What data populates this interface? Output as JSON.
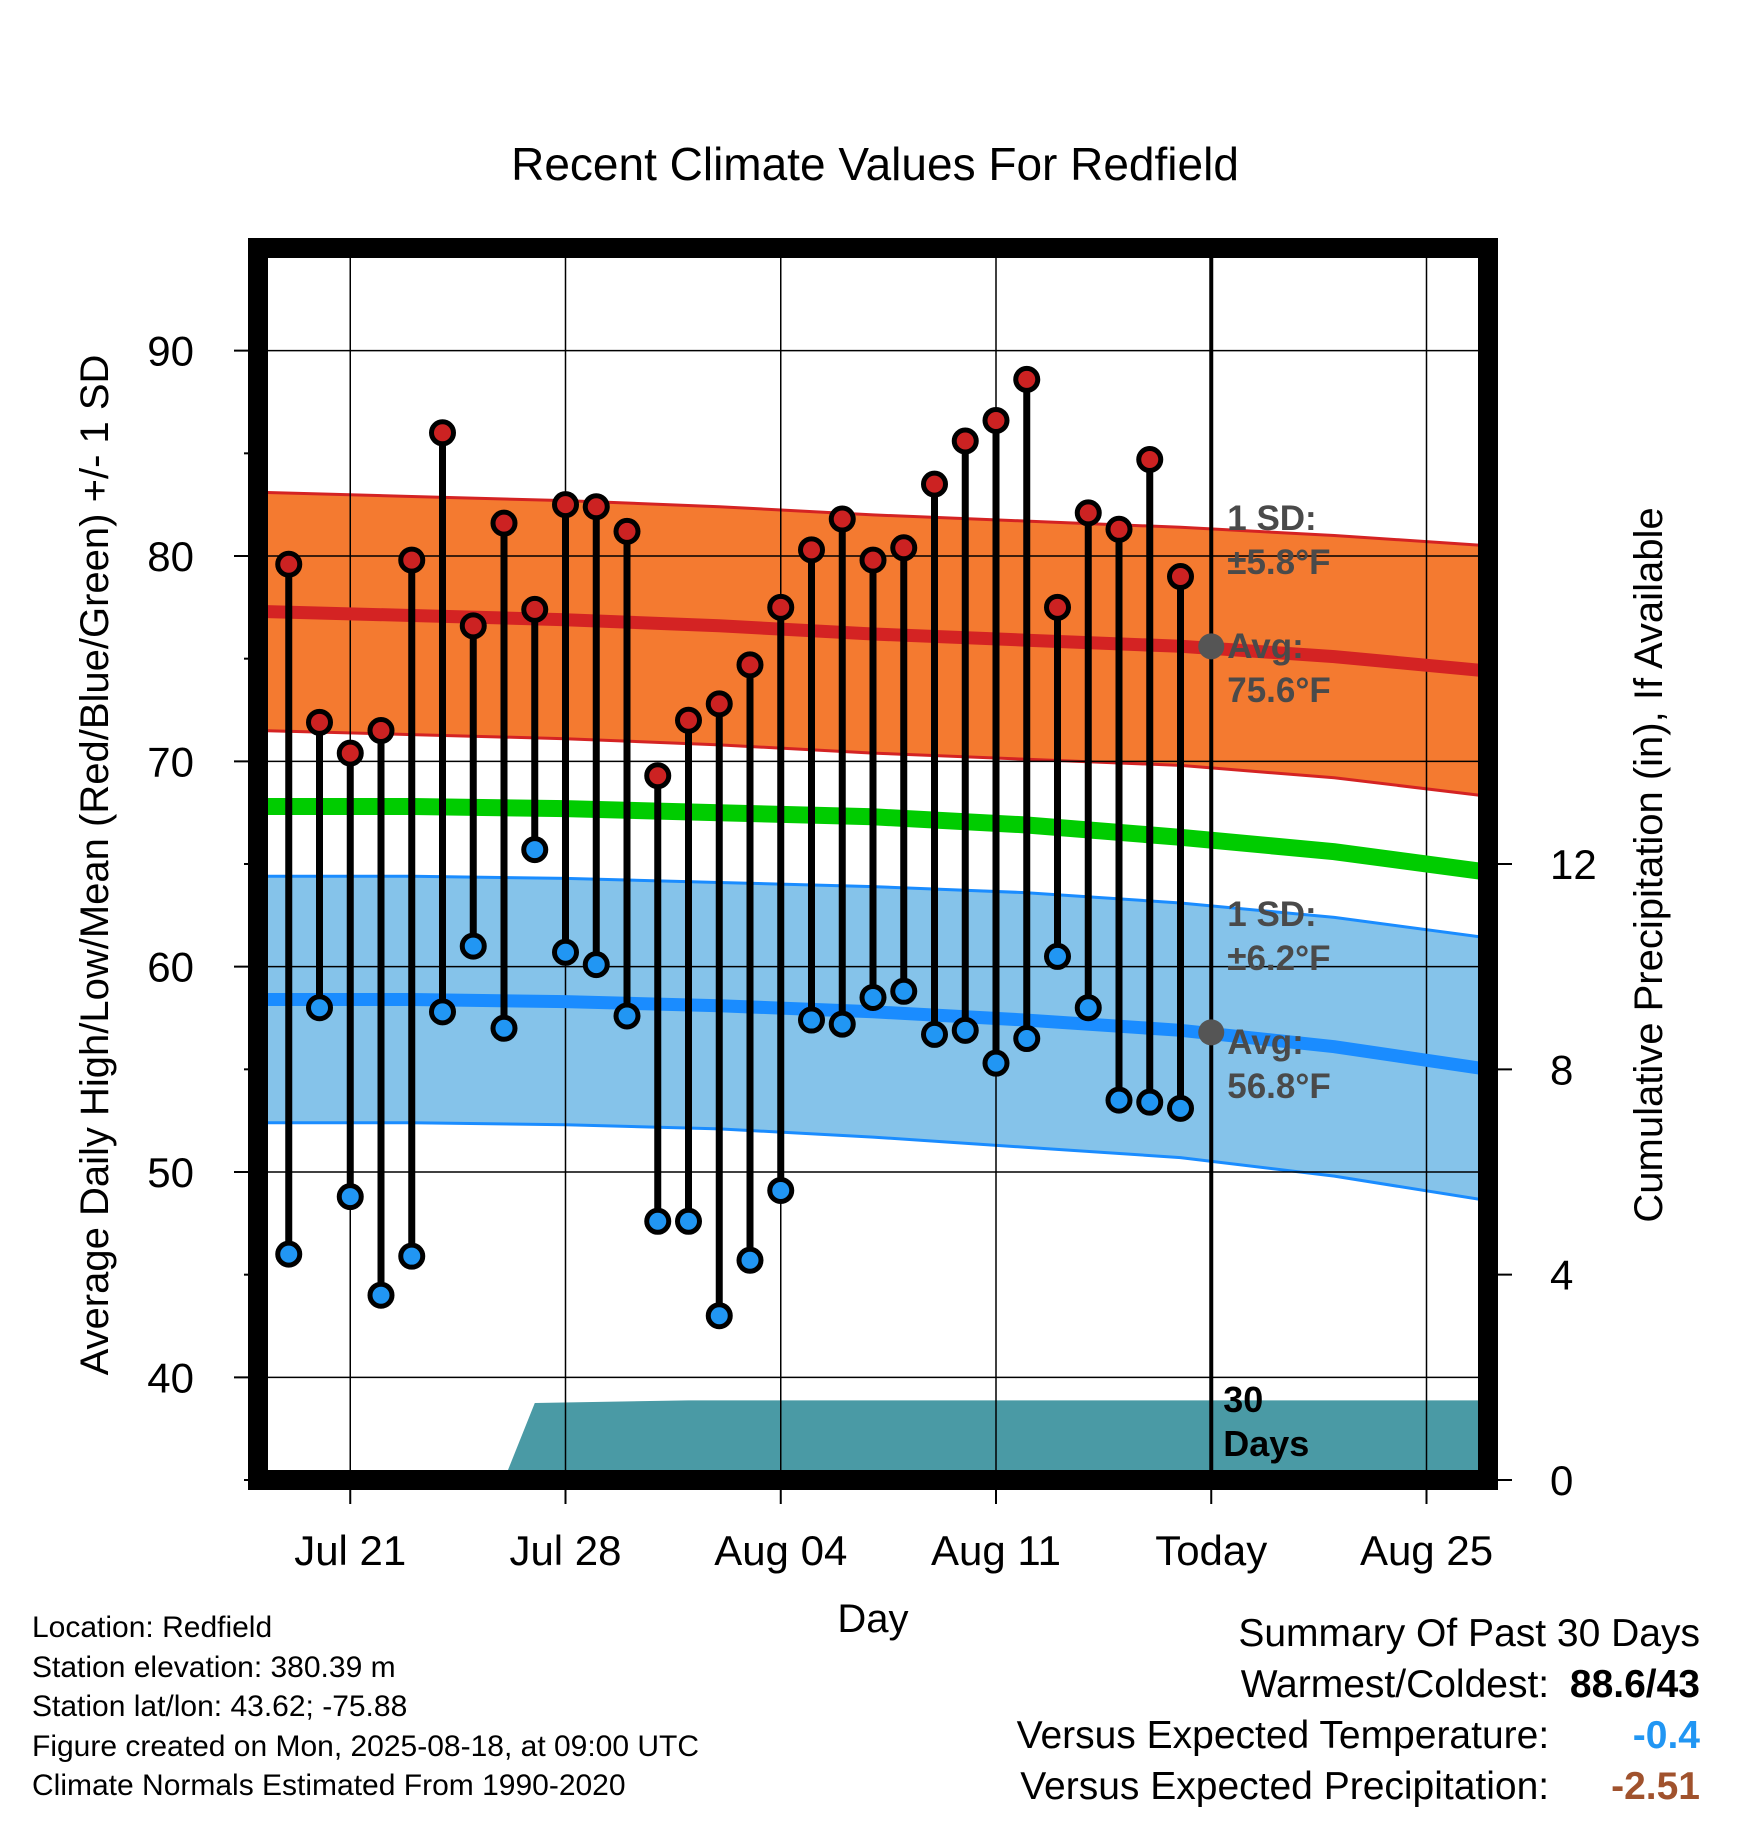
{
  "colors": {
    "high_band": "#f47a30",
    "high_mean": "#d42323",
    "low_band": "#85c3ea",
    "low_mean": "#1a8cff",
    "mean_line": "#00cc00",
    "precip": "#4a9aa5",
    "high_dot": "#cc2222",
    "low_dot": "#2196f3"
  },
  "chart_data": {
    "type": "line",
    "title": "Recent Climate Values For Redfield",
    "xlabel": "Day",
    "ylabel": "Average Daily High/Low/Mean (Red/Blue/Green) +/- 1 SD",
    "y2label": "Cumulative Precipitation (in), If Available",
    "ylim": [
      35,
      95
    ],
    "y2lim": [
      0,
      24
    ],
    "yticks": [
      40,
      50,
      60,
      70,
      80,
      90
    ],
    "y2ticks": [
      0,
      4,
      8,
      12
    ],
    "xlim": [
      "2025-07-18",
      "2025-08-27"
    ],
    "xticks": [
      {
        "date": "2025-07-21",
        "label": "Jul 21"
      },
      {
        "date": "2025-07-28",
        "label": "Jul 28"
      },
      {
        "date": "2025-08-04",
        "label": "Aug 04"
      },
      {
        "date": "2025-08-11",
        "label": "Aug 11"
      },
      {
        "date": "2025-08-18",
        "label": "Today"
      },
      {
        "date": "2025-08-25",
        "label": "Aug 25"
      }
    ],
    "today": "2025-08-18",
    "normals": {
      "dates": [
        "2025-07-18",
        "2025-07-23",
        "2025-07-28",
        "2025-08-02",
        "2025-08-07",
        "2025-08-12",
        "2025-08-17",
        "2025-08-22",
        "2025-08-27"
      ],
      "high_mean": [
        77.3,
        77.1,
        76.9,
        76.6,
        76.2,
        75.9,
        75.6,
        75.1,
        74.4
      ],
      "high_sd": [
        5.8,
        5.8,
        5.8,
        5.8,
        5.8,
        5.8,
        5.8,
        5.9,
        6.1
      ],
      "mean": [
        67.8,
        67.8,
        67.7,
        67.5,
        67.3,
        66.9,
        66.3,
        65.6,
        64.6
      ],
      "low_mean": [
        58.4,
        58.4,
        58.3,
        58.1,
        57.8,
        57.4,
        56.9,
        56.1,
        55.0
      ],
      "low_sd": [
        6.0,
        6.0,
        6.0,
        6.0,
        6.1,
        6.2,
        6.2,
        6.3,
        6.4
      ]
    },
    "series": [
      {
        "name": "High",
        "x": [
          "2025-07-19",
          "2025-07-20",
          "2025-07-21",
          "2025-07-22",
          "2025-07-23",
          "2025-07-24",
          "2025-07-25",
          "2025-07-26",
          "2025-07-27",
          "2025-07-28",
          "2025-07-29",
          "2025-07-30",
          "2025-07-31",
          "2025-08-01",
          "2025-08-02",
          "2025-08-03",
          "2025-08-04",
          "2025-08-05",
          "2025-08-06",
          "2025-08-07",
          "2025-08-08",
          "2025-08-09",
          "2025-08-10",
          "2025-08-11",
          "2025-08-12",
          "2025-08-13",
          "2025-08-14",
          "2025-08-15",
          "2025-08-16",
          "2025-08-17"
        ],
        "values": [
          79.6,
          71.9,
          70.4,
          71.5,
          79.8,
          86.0,
          76.6,
          81.6,
          77.4,
          82.5,
          82.4,
          81.2,
          69.3,
          72.0,
          72.8,
          74.7,
          77.5,
          80.3,
          81.8,
          79.8,
          80.4,
          83.5,
          85.6,
          86.6,
          88.6,
          77.5,
          82.1,
          81.3,
          84.7,
          79.0
        ]
      },
      {
        "name": "Low",
        "x": [
          "2025-07-19",
          "2025-07-20",
          "2025-07-21",
          "2025-07-22",
          "2025-07-23",
          "2025-07-24",
          "2025-07-25",
          "2025-07-26",
          "2025-07-27",
          "2025-07-28",
          "2025-07-29",
          "2025-07-30",
          "2025-07-31",
          "2025-08-01",
          "2025-08-02",
          "2025-08-03",
          "2025-08-04",
          "2025-08-05",
          "2025-08-06",
          "2025-08-07",
          "2025-08-08",
          "2025-08-09",
          "2025-08-10",
          "2025-08-11",
          "2025-08-12",
          "2025-08-13",
          "2025-08-14",
          "2025-08-15",
          "2025-08-16",
          "2025-08-17"
        ],
        "values": [
          46.0,
          58.0,
          48.8,
          44.0,
          45.9,
          57.8,
          61.0,
          57.0,
          65.7,
          60.7,
          60.1,
          57.6,
          47.6,
          47.6,
          43.0,
          45.7,
          49.1,
          57.4,
          57.2,
          58.5,
          58.8,
          56.7,
          56.9,
          55.3,
          56.5,
          60.5,
          58.0,
          53.5,
          53.4,
          53.1
        ]
      },
      {
        "name": "Precipitation",
        "x": [
          "2025-07-26",
          "2025-07-27",
          "2025-08-01",
          "2025-08-27"
        ],
        "values": [
          0.0,
          1.5,
          1.55,
          1.55
        ]
      }
    ],
    "annotations": {
      "high_sd_line1": "1 SD:",
      "high_sd_line2": "±5.8°F",
      "high_avg_line1": "Avg:",
      "high_avg_line2": "75.6°F",
      "low_sd_line1": "1 SD:",
      "low_sd_line2": "±6.2°F",
      "low_avg_line1": "Avg:",
      "low_avg_line2": "56.8°F",
      "high_avg_today": 75.6,
      "low_avg_today": 56.8,
      "days_line1": "30",
      "days_line2": "Days"
    }
  },
  "footer": {
    "location": "Location: Redfield",
    "elevation": "Station elevation: 380.39 m",
    "latlon": "Station lat/lon: 43.62; -75.88",
    "created": "Figure created on Mon, 2025-08-18, at 09:00 UTC",
    "normals": "Climate Normals Estimated From 1990-2020"
  },
  "summary": {
    "title": "Summary Of Past 30 Days",
    "warm_label": "Warmest/Coldest:",
    "warm_value": "88.6/43",
    "temp_label": "Versus Expected Temperature:",
    "temp_value": "-0.4",
    "prec_label": "Versus Expected Precipitation:",
    "prec_value": "-2.51"
  }
}
